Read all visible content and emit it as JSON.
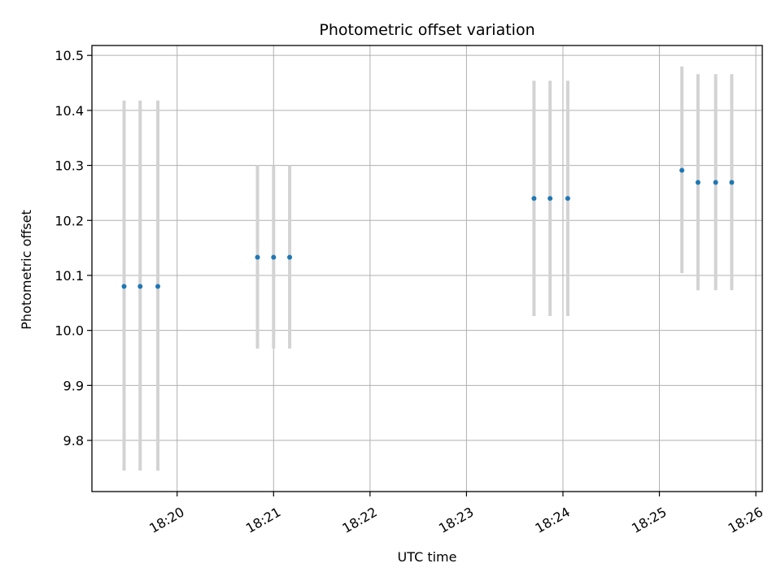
{
  "chart_data": {
    "type": "scatter",
    "title": "Photometric offset variation",
    "xlabel": "UTC time",
    "ylabel": "Photometric offset",
    "x_ticks": [
      "18:20",
      "18:21",
      "18:22",
      "18:23",
      "18:24",
      "18:25",
      "18:26"
    ],
    "y_ticks": [
      "9.8",
      "9.9",
      "10.0",
      "10.1",
      "10.2",
      "10.3",
      "10.4",
      "10.5"
    ],
    "xlim": [
      "18:19:07",
      "18:26:04"
    ],
    "ylim": [
      9.707,
      10.518
    ],
    "grid": true,
    "errorbar_color": "#d3d3d3",
    "marker_color": "#1f77b4",
    "series": [
      {
        "points": [
          {
            "x": "18:19:27",
            "y": 10.08,
            "yerr_low": 9.745,
            "yerr_high": 10.418
          },
          {
            "x": "18:19:37",
            "y": 10.08,
            "yerr_low": 9.745,
            "yerr_high": 10.418
          },
          {
            "x": "18:19:48",
            "y": 10.08,
            "yerr_low": 9.745,
            "yerr_high": 10.418
          },
          {
            "x": "18:20:50",
            "y": 10.133,
            "yerr_low": 9.967,
            "yerr_high": 10.3
          },
          {
            "x": "18:21:00",
            "y": 10.133,
            "yerr_low": 9.967,
            "yerr_high": 10.3
          },
          {
            "x": "18:21:10",
            "y": 10.133,
            "yerr_low": 9.967,
            "yerr_high": 10.3
          },
          {
            "x": "18:23:42",
            "y": 10.24,
            "yerr_low": 10.026,
            "yerr_high": 10.454
          },
          {
            "x": "18:23:52",
            "y": 10.24,
            "yerr_low": 10.026,
            "yerr_high": 10.454
          },
          {
            "x": "18:24:03",
            "y": 10.24,
            "yerr_low": 10.026,
            "yerr_high": 10.454
          },
          {
            "x": "18:25:14",
            "y": 10.291,
            "yerr_low": 10.104,
            "yerr_high": 10.48
          },
          {
            "x": "18:25:24",
            "y": 10.269,
            "yerr_low": 10.073,
            "yerr_high": 10.466
          },
          {
            "x": "18:25:35",
            "y": 10.269,
            "yerr_low": 10.073,
            "yerr_high": 10.466
          },
          {
            "x": "18:25:45",
            "y": 10.269,
            "yerr_low": 10.073,
            "yerr_high": 10.466
          }
        ]
      }
    ]
  }
}
